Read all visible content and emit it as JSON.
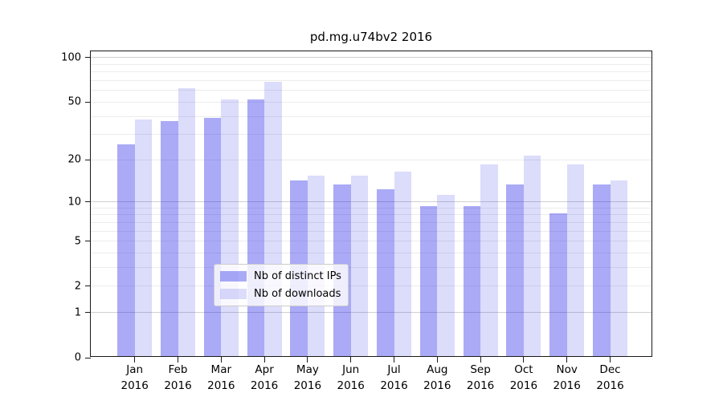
{
  "chart_data": {
    "type": "bar",
    "title": "pd.mg.u74bv2 2016",
    "categories": [
      "Jan",
      "Feb",
      "Mar",
      "Apr",
      "May",
      "Jun",
      "Jul",
      "Aug",
      "Sep",
      "Oct",
      "Nov",
      "Dec"
    ],
    "year": "2016",
    "series": [
      {
        "name": "Nb of distinct IPs",
        "color": "rgba(20,20,230,0.36)",
        "values": [
          25,
          36,
          38,
          51,
          14,
          13,
          12,
          9,
          9,
          13,
          8,
          13
        ]
      },
      {
        "name": "Nb of downloads",
        "color": "rgba(20,20,230,0.15)",
        "values": [
          37,
          61,
          51,
          67,
          15,
          15,
          16,
          11,
          18,
          21,
          18,
          14
        ]
      }
    ],
    "xlabel": "",
    "ylabel": "",
    "y_scale": "log10(value+1)",
    "y_ticks": [
      0,
      1,
      2,
      5,
      10,
      20,
      50,
      100
    ],
    "y_major_gridlines": [
      1,
      10,
      100
    ],
    "y_minor_gridlines": [
      2,
      3,
      4,
      5,
      6,
      7,
      8,
      9,
      20,
      30,
      40,
      50,
      60,
      70,
      80,
      90
    ],
    "ylim": [
      0,
      111
    ],
    "grid": true,
    "legend_position": "lower center inside",
    "colors": {
      "bar_dark": "rgba(20,20,230,0.36)",
      "bar_light": "rgba(20,20,230,0.15)",
      "grid_minor": "#ececec",
      "grid_major": "#d0d0d0",
      "spine": "#1a1a1a",
      "text": "#000000"
    }
  }
}
